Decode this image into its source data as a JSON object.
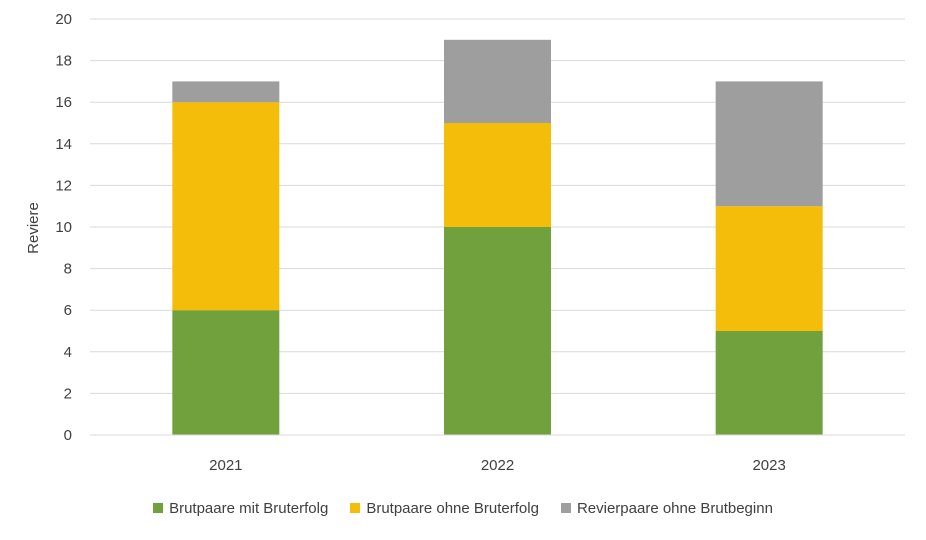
{
  "chart_data": {
    "type": "bar",
    "stacked": true,
    "title": "",
    "xlabel": "",
    "ylabel": "Reviere",
    "ylim": [
      0,
      20
    ],
    "yticks": [
      "0",
      "2",
      "4",
      "6",
      "8",
      "10",
      "12",
      "14",
      "16",
      "18",
      "20"
    ],
    "categories": [
      "2021",
      "2022",
      "2023"
    ],
    "series": [
      {
        "name": "Brutpaare mit Bruterfolg",
        "color": "#70a13c",
        "values": [
          6,
          10,
          5
        ]
      },
      {
        "name": "Brutpaare ohne Bruterfolg",
        "color": "#f4bd0a",
        "values": [
          10,
          5,
          6
        ]
      },
      {
        "name": "Revierpaare ohne Brutbeginn",
        "color": "#9e9e9e",
        "values": [
          1,
          4,
          6
        ]
      }
    ],
    "grid": true,
    "legend_position": "bottom"
  }
}
